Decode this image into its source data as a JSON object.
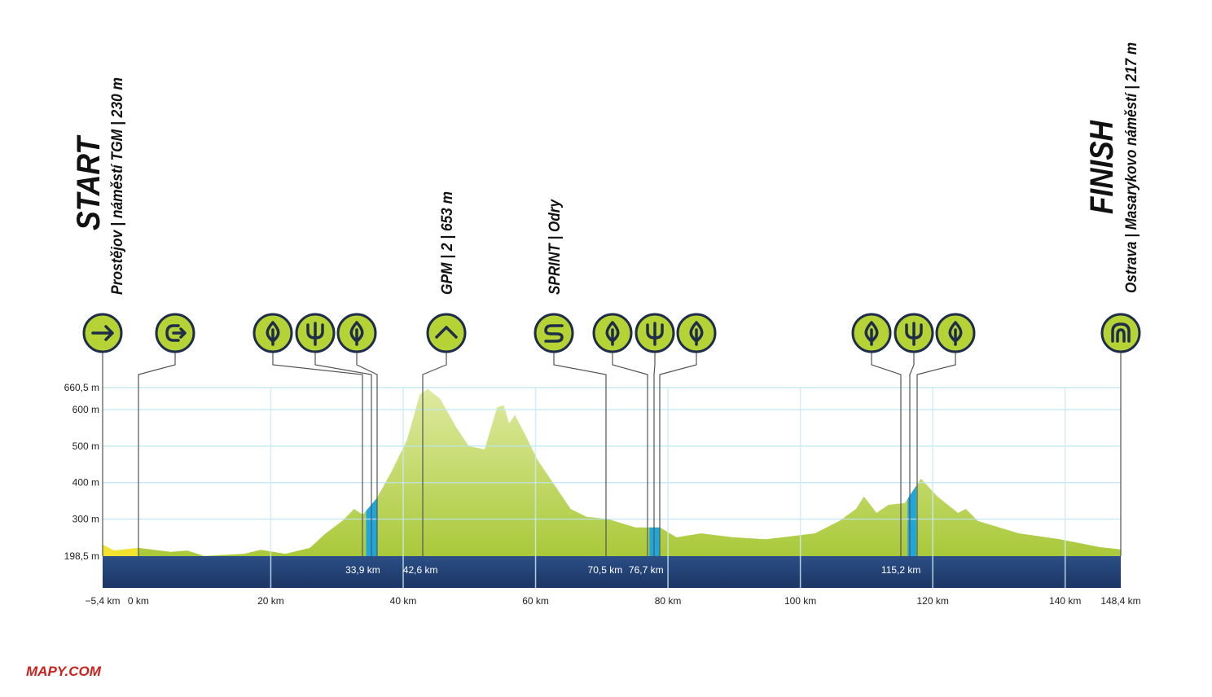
{
  "chart_data": {
    "type": "area",
    "start_label": "START",
    "start_place": "Prostějov | náměstí TGM | 230 m",
    "finish_label": "FINISH",
    "finish_place": "Ostrava | Masarykovo náměstí | 217 m",
    "annotations": [
      "GPM | 2 | 653 m",
      "SPRINT | Odry"
    ],
    "x": [
      -5.4,
      -3.7,
      0,
      4.9,
      7.4,
      9.9,
      16,
      18.5,
      22.2,
      25.9,
      28.3,
      30.8,
      32.6,
      33.9,
      36,
      38.2,
      40.6,
      42.5,
      43.7,
      45.6,
      48,
      49.9,
      52.3,
      54.2,
      55.2,
      56,
      56.9,
      58.5,
      60.3,
      62.8,
      65.3,
      67.7,
      70.8,
      75.1,
      78.8,
      81.3,
      85,
      89.9,
      94.8,
      97.3,
      102.2,
      105.9,
      108.4,
      109.6,
      111.5,
      113.3,
      115.8,
      118.2,
      120.7,
      123.8,
      125,
      126.8,
      133,
      139.2,
      145.3,
      148.4
    ],
    "values": [
      230,
      214,
      221,
      210,
      214,
      199,
      205,
      216,
      205,
      221,
      261,
      295,
      328,
      312,
      357,
      429,
      518,
      641,
      657,
      630,
      552,
      500,
      491,
      607,
      612,
      563,
      585,
      529,
      462,
      395,
      328,
      306,
      301,
      277,
      277,
      250,
      261,
      250,
      245,
      250,
      261,
      295,
      328,
      362,
      317,
      339,
      344,
      411,
      362,
      317,
      328,
      295,
      261,
      245,
      223,
      217
    ],
    "color": "#b2cf3a",
    "segments": [
      {
        "x": [
          -5.4,
          0
        ],
        "color": "#f2e331"
      },
      {
        "x": [
          34.4,
          36.1
        ],
        "color": "#1ea7dd"
      },
      {
        "x": [
          77.2,
          78.7
        ],
        "color": "#1ea7dd"
      },
      {
        "x": [
          116.2,
          117.5
        ],
        "color": "#1ea7dd"
      }
    ],
    "xlim": [
      -5.4,
      148.4
    ],
    "xticks": [
      {
        "value": -5.4,
        "label": "−5,4 km"
      },
      {
        "value": 0,
        "label": "0 km"
      },
      {
        "value": 20,
        "label": "20 km"
      },
      {
        "value": 40,
        "label": "40 km"
      },
      {
        "value": 60,
        "label": "60 km"
      },
      {
        "value": 80,
        "label": "80 km"
      },
      {
        "value": 100,
        "label": "100 km"
      },
      {
        "value": 120,
        "label": "120 km"
      },
      {
        "value": 140,
        "label": "140 km"
      },
      {
        "value": 148.4,
        "label": "148,4 km"
      }
    ],
    "ylim": [
      198.5,
      660.5
    ],
    "yticks": [
      {
        "value": 198.5,
        "label": "198,5 m"
      },
      {
        "value": 300,
        "label": "300 m"
      },
      {
        "value": 400,
        "label": "400 m"
      },
      {
        "value": 500,
        "label": "500 m"
      },
      {
        "value": 600,
        "label": "600 m"
      },
      {
        "value": 660.5,
        "label": "660,5 m"
      }
    ],
    "km_labels": [
      {
        "value": 33.9,
        "label": "33,9 km"
      },
      {
        "value": 42.6,
        "label": "42,6 km"
      },
      {
        "value": 70.5,
        "label": "70,5 km"
      },
      {
        "value": 76.7,
        "label": "76,7 km"
      },
      {
        "value": 115.2,
        "label": "115,2 km"
      }
    ],
    "grid": true
  },
  "logo": "MAPY.COM"
}
